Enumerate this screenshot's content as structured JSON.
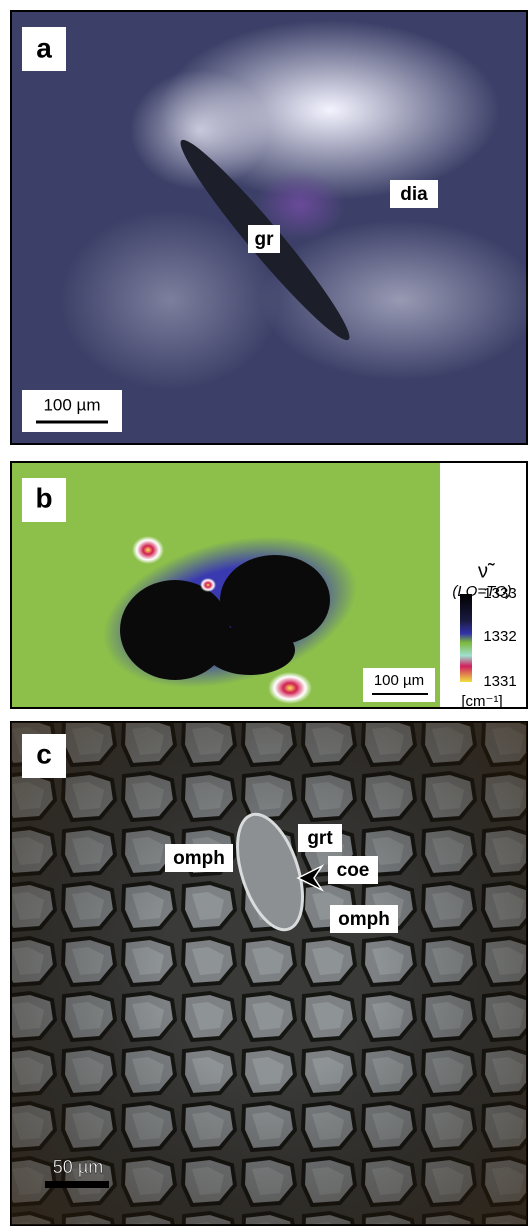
{
  "panels": [
    {
      "label": "a",
      "annotations": [
        "gr",
        "dia"
      ],
      "scale_bar": "100 µm"
    },
    {
      "label": "b",
      "scale_bar": "100 µm",
      "colorbar": {
        "symbol": "ν̃",
        "subtitle": "(LO=TO)",
        "ticks": [
          1333,
          1332,
          1331
        ],
        "unit": "[cm⁻¹]"
      }
    },
    {
      "label": "c",
      "annotations": [
        "grt",
        "omph",
        "coe",
        "omph"
      ],
      "scale_bar": "50 µm"
    }
  ]
}
